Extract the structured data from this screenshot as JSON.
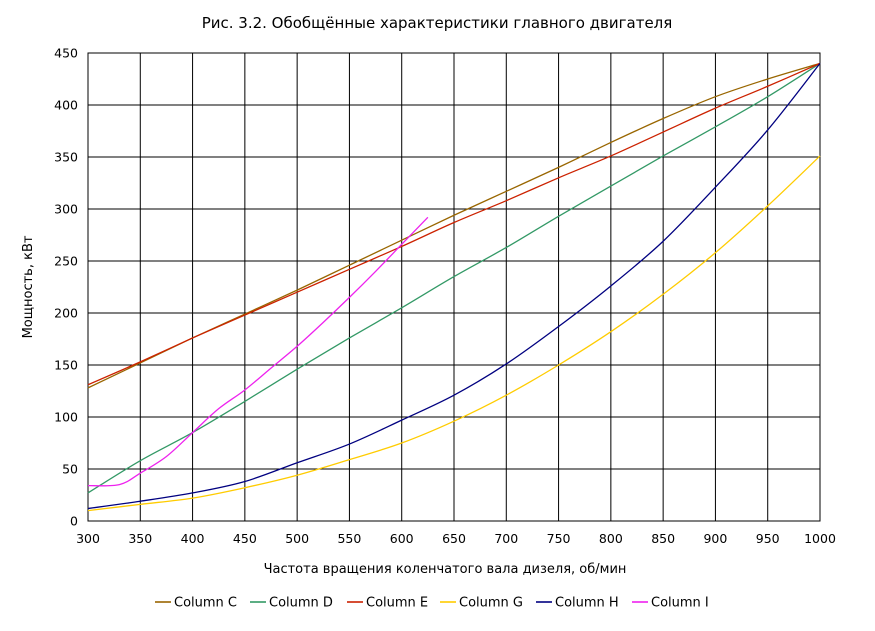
{
  "chart_data": {
    "type": "line",
    "title": "Рис. 3.2.   Обобщённые характеристики главного двигателя",
    "xlabel": "Частота вращения коленчатого вала дизеля, об/мин",
    "ylabel": "Мощность, кВт",
    "xlim": [
      300,
      1000
    ],
    "ylim": [
      0,
      450
    ],
    "xticks": [
      300,
      350,
      400,
      450,
      500,
      550,
      600,
      650,
      700,
      750,
      800,
      850,
      900,
      950,
      1000
    ],
    "yticks": [
      0,
      50,
      100,
      150,
      200,
      250,
      300,
      350,
      400,
      450
    ],
    "grid": true,
    "legend_position": "bottom",
    "series": [
      {
        "name": "Column C",
        "color": "#996600",
        "x": [
          300,
          350,
          400,
          450,
          500,
          550,
          600,
          650,
          700,
          750,
          800,
          850,
          900,
          950,
          1000
        ],
        "y": [
          128,
          152,
          176,
          199,
          222,
          246,
          270,
          294,
          317,
          340,
          364,
          387,
          408,
          425,
          440
        ]
      },
      {
        "name": "Column D",
        "color": "#339966",
        "x": [
          300,
          350,
          400,
          450,
          500,
          550,
          600,
          650,
          700,
          750,
          800,
          850,
          900,
          950,
          1000
        ],
        "y": [
          27,
          58,
          85,
          115,
          146,
          176,
          205,
          235,
          263,
          293,
          322,
          351,
          379,
          408,
          440
        ]
      },
      {
        "name": "Column E",
        "color": "#cc2200",
        "x": [
          300,
          350,
          400,
          450,
          500,
          550,
          600,
          650,
          700,
          750,
          800,
          850,
          900,
          950,
          1000
        ],
        "y": [
          131,
          153,
          176,
          198,
          220,
          242,
          264,
          287,
          308,
          330,
          351,
          374,
          397,
          418,
          440
        ]
      },
      {
        "name": "Column G",
        "color": "#ffcc00",
        "x": [
          300,
          350,
          400,
          450,
          500,
          550,
          600,
          650,
          700,
          750,
          800,
          850,
          900,
          950,
          1000
        ],
        "y": [
          10,
          16,
          22,
          32,
          44,
          59,
          75,
          96,
          121,
          150,
          182,
          218,
          258,
          303,
          351
        ]
      },
      {
        "name": "Column H",
        "color": "#000080",
        "x": [
          300,
          350,
          400,
          450,
          500,
          550,
          600,
          650,
          700,
          750,
          800,
          850,
          900,
          950,
          1000
        ],
        "y": [
          12,
          19,
          27,
          38,
          56,
          74,
          97,
          121,
          151,
          187,
          226,
          269,
          321,
          376,
          440
        ]
      },
      {
        "name": "Column I",
        "color": "#ee22ee",
        "x": [
          300,
          330,
          350,
          375,
          400,
          425,
          450,
          475,
          500,
          525,
          550,
          575,
          600,
          625
        ],
        "y": [
          34,
          35,
          46,
          62,
          85,
          108,
          126,
          147,
          168,
          191,
          215,
          240,
          266,
          292
        ]
      }
    ]
  }
}
